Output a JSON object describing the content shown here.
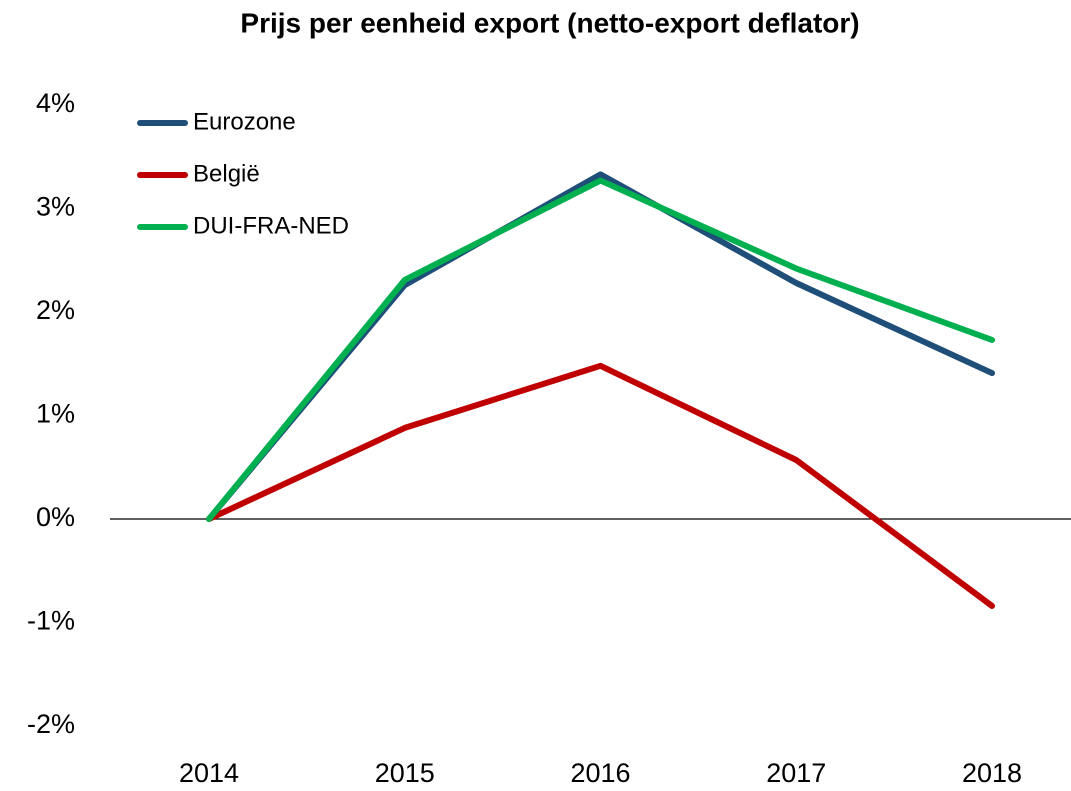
{
  "chart_data": {
    "type": "line",
    "title": "Prijs per eenheid export (netto-export deflator)",
    "categories": [
      "2014",
      "2015",
      "2016",
      "2017",
      "2018"
    ],
    "series": [
      {
        "name": "Eurozone",
        "color": "#1f4e79",
        "values": [
          0,
          2.26,
          3.33,
          2.28,
          1.41
        ]
      },
      {
        "name": "België",
        "color": "#c00000",
        "values": [
          0,
          0.88,
          1.48,
          0.57,
          -0.84
        ]
      },
      {
        "name": "DUI-FRA-NED",
        "color": "#00b050",
        "values": [
          0,
          2.31,
          3.27,
          2.42,
          1.73
        ]
      }
    ],
    "ylim": [
      -2,
      4
    ],
    "yticks": [
      {
        "value": -2,
        "label": "-2%"
      },
      {
        "value": -1,
        "label": "-1%"
      },
      {
        "value": 0,
        "label": "0%"
      },
      {
        "value": 1,
        "label": "1%"
      },
      {
        "value": 2,
        "label": "2%"
      },
      {
        "value": 3,
        "label": "3%"
      },
      {
        "value": 4,
        "label": "4%"
      }
    ],
    "grid": false,
    "legend": "upper-left"
  }
}
